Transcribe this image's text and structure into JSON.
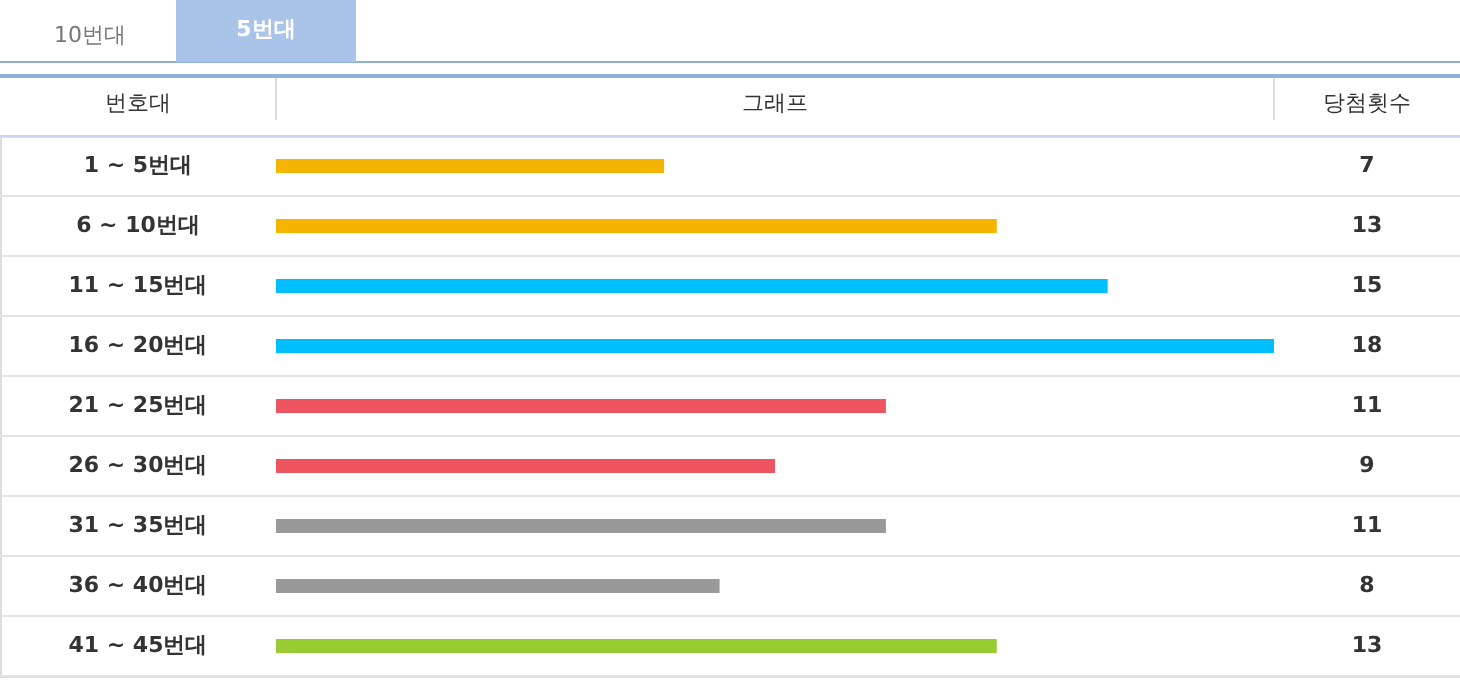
{
  "chart_data": {
    "type": "bar",
    "orientation": "horizontal",
    "categories": [
      "1 ~  5번대",
      "6 ~ 10번대",
      "11 ~ 15번대",
      "16 ~ 20번대",
      "21 ~ 25번대",
      "26 ~ 30번대",
      "31 ~ 35번대",
      "36 ~ 40번대",
      "41 ~ 45번대"
    ],
    "values": [
      7,
      13,
      15,
      18,
      11,
      9,
      11,
      8,
      13
    ],
    "colors": [
      "#f5b400",
      "#f5b400",
      "#00bfff",
      "#00bfff",
      "#ee5560",
      "#ee5560",
      "#999999",
      "#999999",
      "#99cc33"
    ],
    "xlim": [
      0,
      18
    ],
    "tick_labels": false,
    "data_labels": true,
    "annotations": [
      "10번대",
      "5번대",
      "번호대",
      "그래프",
      "당첨횟수"
    ]
  }
}
